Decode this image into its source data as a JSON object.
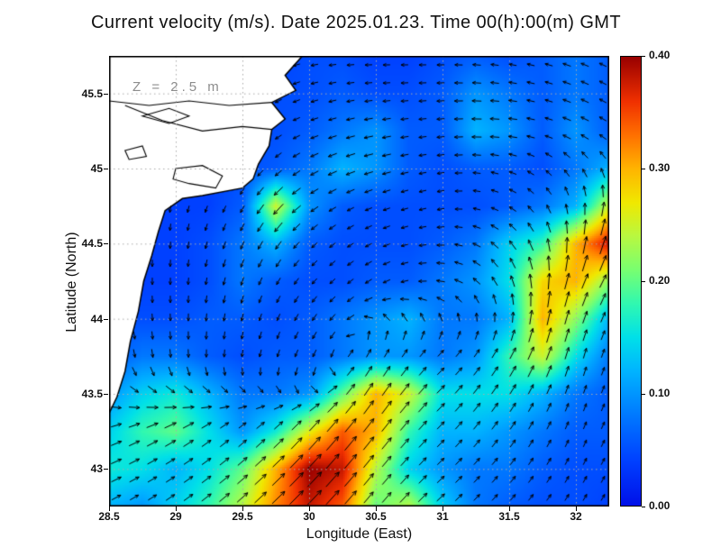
{
  "title": "Current velocity (m/s). Date 2025.01.23. Time 00(h):00(m) GMT",
  "annotation": "Z = 2.5 m",
  "axes": {
    "x": {
      "label": "Longitude (East)",
      "ticks": [
        28.5,
        29,
        29.5,
        30,
        30.5,
        31,
        31.5,
        32
      ],
      "tick_labels": [
        "28.5",
        "29",
        "29.5",
        "30",
        "30.5",
        "31",
        "31.5",
        "32"
      ],
      "range": [
        28.5,
        32.25
      ]
    },
    "y": {
      "label": "Latitude (North)",
      "ticks": [
        43,
        43.5,
        44,
        44.5,
        45,
        45.5
      ],
      "tick_labels": [
        "43",
        "43.5",
        "44",
        "44.5",
        "45",
        "45.5"
      ],
      "range": [
        42.75,
        45.75
      ]
    }
  },
  "colorbar": {
    "min": 0.0,
    "max": 0.4,
    "tick_values": [
      0.0,
      0.1,
      0.2,
      0.3,
      0.4
    ],
    "tick_labels": [
      "0.00",
      "0.10",
      "0.20",
      "0.30",
      "0.40"
    ]
  },
  "chart_data": {
    "type": "heatmap",
    "title": "Current velocity (m/s). Date 2025.01.23. Time 00(h):00(m) GMT",
    "units": "m/s",
    "depth_label": "Z = 2.5 m",
    "lon_range": [
      28.5,
      32.25
    ],
    "lat_range": [
      42.75,
      45.75
    ],
    "colormap_stops": [
      [
        0.0,
        "#0010E8"
      ],
      [
        0.04,
        "#0040FF"
      ],
      [
        0.08,
        "#0078FF"
      ],
      [
        0.12,
        "#00B4FF"
      ],
      [
        0.15,
        "#00E0E8"
      ],
      [
        0.18,
        "#30F8B0"
      ],
      [
        0.21,
        "#78FF70"
      ],
      [
        0.24,
        "#B8F840"
      ],
      [
        0.27,
        "#F0E800"
      ],
      [
        0.3,
        "#FFB400"
      ],
      [
        0.33,
        "#FF7000"
      ],
      [
        0.36,
        "#F03000"
      ],
      [
        0.4,
        "#980000"
      ]
    ],
    "speed_grid": {
      "lon_start": 28.5,
      "lon_step": 0.25,
      "lat_start": 45.75,
      "lat_step": 0.25,
      "values": [
        [
          0.04,
          0.04,
          0.04,
          0.04,
          0.04,
          0.04,
          0.05,
          0.05,
          0.04,
          0.04,
          0.05,
          0.06,
          0.05,
          0.06,
          0.08,
          0.06
        ],
        [
          0.04,
          0.04,
          0.04,
          0.04,
          0.04,
          0.05,
          0.05,
          0.06,
          0.05,
          0.05,
          0.06,
          0.1,
          0.08,
          0.06,
          0.08,
          0.06
        ],
        [
          0.04,
          0.04,
          0.04,
          0.04,
          0.05,
          0.05,
          0.06,
          0.08,
          0.1,
          0.06,
          0.06,
          0.12,
          0.1,
          0.06,
          0.1,
          0.06
        ],
        [
          0.04,
          0.04,
          0.04,
          0.04,
          0.05,
          0.06,
          0.08,
          0.12,
          0.1,
          0.06,
          0.05,
          0.06,
          0.06,
          0.05,
          0.08,
          0.12
        ],
        [
          0.04,
          0.04,
          0.04,
          0.04,
          0.06,
          0.25,
          0.1,
          0.06,
          0.05,
          0.05,
          0.05,
          0.05,
          0.06,
          0.08,
          0.12,
          0.25
        ],
        [
          0.04,
          0.04,
          0.04,
          0.05,
          0.08,
          0.12,
          0.06,
          0.05,
          0.05,
          0.05,
          0.06,
          0.08,
          0.14,
          0.18,
          0.3,
          0.38
        ],
        [
          0.04,
          0.04,
          0.04,
          0.05,
          0.08,
          0.06,
          0.05,
          0.05,
          0.06,
          0.06,
          0.08,
          0.1,
          0.15,
          0.28,
          0.3,
          0.22
        ],
        [
          0.05,
          0.05,
          0.05,
          0.06,
          0.06,
          0.05,
          0.06,
          0.08,
          0.1,
          0.12,
          0.08,
          0.08,
          0.12,
          0.3,
          0.22,
          0.12
        ],
        [
          0.06,
          0.08,
          0.08,
          0.06,
          0.05,
          0.06,
          0.06,
          0.08,
          0.1,
          0.1,
          0.08,
          0.1,
          0.18,
          0.25,
          0.15,
          0.08
        ],
        [
          0.1,
          0.14,
          0.16,
          0.12,
          0.08,
          0.08,
          0.1,
          0.2,
          0.3,
          0.25,
          0.15,
          0.15,
          0.15,
          0.12,
          0.08,
          0.06
        ],
        [
          0.14,
          0.18,
          0.2,
          0.15,
          0.1,
          0.16,
          0.26,
          0.34,
          0.3,
          0.18,
          0.12,
          0.12,
          0.1,
          0.08,
          0.06,
          0.06
        ],
        [
          0.16,
          0.15,
          0.12,
          0.15,
          0.2,
          0.3,
          0.4,
          0.38,
          0.24,
          0.14,
          0.1,
          0.08,
          0.08,
          0.06,
          0.05,
          0.05
        ],
        [
          0.12,
          0.1,
          0.14,
          0.18,
          0.24,
          0.32,
          0.38,
          0.34,
          0.2,
          0.24,
          0.14,
          0.08,
          0.06,
          0.05,
          0.05,
          0.04
        ]
      ]
    },
    "direction_grid": {
      "lon_nodes": [
        28.5,
        29,
        29.5,
        30,
        30.5,
        31,
        31.5,
        32,
        32.5
      ],
      "lat_nodes": [
        45.75,
        45.25,
        44.75,
        44.25,
        43.75,
        43.25,
        42.75
      ],
      "angles_deg": [
        [
          260,
          240,
          210,
          190,
          180,
          180,
          170,
          160,
          150
        ],
        [
          270,
          255,
          225,
          200,
          190,
          185,
          175,
          155,
          140
        ],
        [
          270,
          260,
          240,
          215,
          200,
          190,
          150,
          95,
          60
        ],
        [
          275,
          268,
          252,
          230,
          210,
          170,
          110,
          70,
          55
        ],
        [
          285,
          275,
          262,
          245,
          60,
          45,
          60,
          75,
          65
        ],
        [
          20,
          30,
          40,
          48,
          52,
          46,
          55,
          68,
          62
        ],
        [
          28,
          35,
          42,
          46,
          50,
          42,
          48,
          58,
          62
        ]
      ]
    },
    "coastline": [
      [
        29.95,
        45.75
      ],
      [
        29.82,
        45.62
      ],
      [
        29.9,
        45.52
      ],
      [
        29.72,
        45.44
      ],
      [
        29.82,
        45.33
      ],
      [
        29.72,
        45.26
      ],
      [
        29.7,
        45.15
      ],
      [
        29.62,
        45.03
      ],
      [
        29.58,
        44.93
      ],
      [
        29.5,
        44.87
      ],
      [
        29.2,
        44.82
      ],
      [
        29.05,
        44.8
      ],
      [
        28.92,
        44.72
      ],
      [
        28.87,
        44.58
      ],
      [
        28.82,
        44.42
      ],
      [
        28.76,
        44.25
      ],
      [
        28.72,
        44.05
      ],
      [
        28.66,
        43.85
      ],
      [
        28.62,
        43.65
      ],
      [
        28.56,
        43.48
      ],
      [
        28.5,
        43.37
      ]
    ],
    "lakes": [
      [
        [
          29.0,
          45.0
        ],
        [
          29.2,
          45.02
        ],
        [
          29.35,
          44.95
        ],
        [
          29.3,
          44.87
        ],
        [
          29.1,
          44.9
        ],
        [
          28.98,
          44.93
        ]
      ],
      [
        [
          28.75,
          45.35
        ],
        [
          28.95,
          45.4
        ],
        [
          29.1,
          45.35
        ],
        [
          28.95,
          45.3
        ]
      ],
      [
        [
          28.62,
          45.12
        ],
        [
          28.75,
          45.15
        ],
        [
          28.78,
          45.08
        ],
        [
          28.65,
          45.06
        ]
      ]
    ],
    "rivers": [
      [
        [
          28.5,
          45.45
        ],
        [
          28.8,
          45.42
        ],
        [
          29.1,
          45.45
        ],
        [
          29.4,
          45.42
        ],
        [
          29.72,
          45.44
        ]
      ],
      [
        [
          28.62,
          45.42
        ],
        [
          28.9,
          45.32
        ],
        [
          29.2,
          45.25
        ],
        [
          29.5,
          45.28
        ],
        [
          29.72,
          45.26
        ]
      ]
    ],
    "grid_line_color": "#aaaaaa",
    "arrow_color": "#000000",
    "land_color": "#ffffff"
  }
}
